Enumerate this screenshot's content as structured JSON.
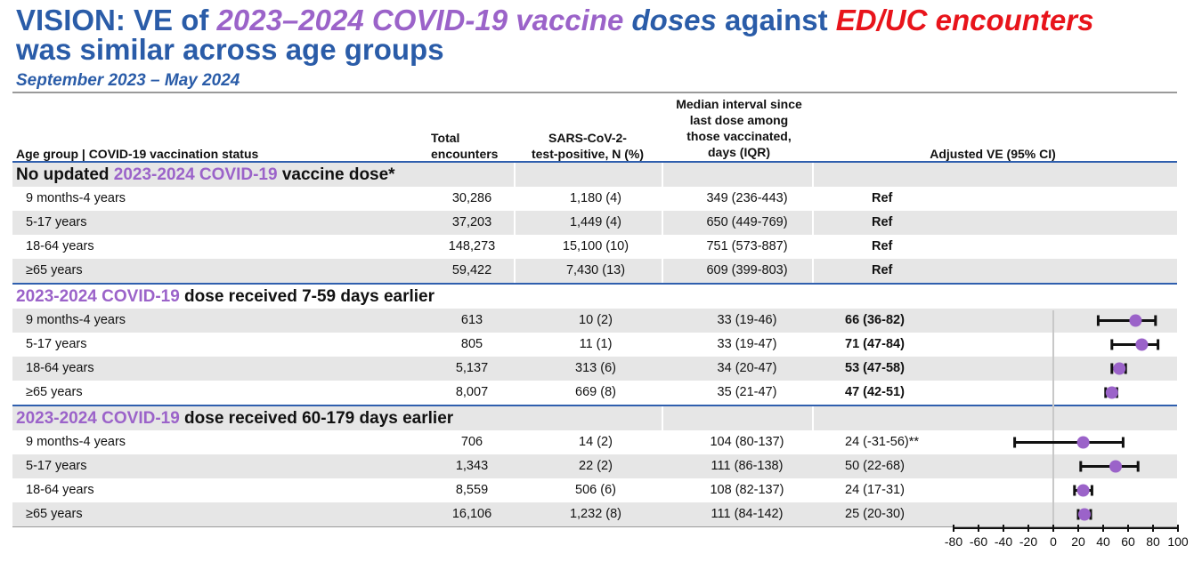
{
  "title": {
    "part1": "VISION: VE of ",
    "part2": "2023–2024 COVID-19 vaccine",
    "part3": " doses",
    "part4": " against ",
    "part5": "ED/UC encounters",
    "line2": "was similar across age groups"
  },
  "subtitle": "September 2023 – May 2024",
  "headers": {
    "age": "Age group | COVID-19 vaccination status",
    "total": [
      "Total",
      "encounters"
    ],
    "positive": [
      "SARS-CoV-2-",
      "test-positive, N (%)"
    ],
    "interval": [
      "Median interval since",
      "last dose among",
      "those vaccinated,",
      "days (IQR)"
    ],
    "ve": "Adjusted VE (95% CI)"
  },
  "sections": [
    {
      "title_pre": "No updated ",
      "title_vac": "2023-2024 COVID-19",
      "title_post": " vaccine dose*",
      "rows": [
        {
          "age": "9 months-4 years",
          "total": "30,286",
          "positive": "1,180 (4)",
          "interval": "349 (236-443)",
          "ve": "Ref"
        },
        {
          "age": "5-17 years",
          "total": "37,203",
          "positive": "1,449 (4)",
          "interval": "650 (449-769)",
          "ve": "Ref"
        },
        {
          "age": "18-64 years",
          "total": "148,273",
          "positive": "15,100 (10)",
          "interval": "751 (573-887)",
          "ve": "Ref"
        },
        {
          "age": "≥65 years",
          "total": "59,422",
          "positive": "7,430 (13)",
          "interval": "609 (399-803)",
          "ve": "Ref"
        }
      ]
    },
    {
      "title_pre": "",
      "title_vac": "2023-2024 COVID-19",
      "title_post": " dose received 7-59 days earlier",
      "rows": [
        {
          "age": "9 months-4 years",
          "total": "613",
          "positive": "10 (2)",
          "interval": "33 (19-46)",
          "ve": "66 (36-82)"
        },
        {
          "age": "5-17 years",
          "total": "805",
          "positive": "11 (1)",
          "interval": "33 (19-47)",
          "ve": "71 (47-84)"
        },
        {
          "age": "18-64 years",
          "total": "5,137",
          "positive": "313 (6)",
          "interval": "34 (20-47)",
          "ve": "53 (47-58)"
        },
        {
          "age": "≥65 years",
          "total": "8,007",
          "positive": "669 (8)",
          "interval": "35 (21-47)",
          "ve": "47 (42-51)"
        }
      ]
    },
    {
      "title_pre": "",
      "title_vac": "2023-2024 COVID-19",
      "title_post": " dose received 60-179 days earlier",
      "rows": [
        {
          "age": "9 months-4 years",
          "total": "706",
          "positive": "14 (2)",
          "interval": "104 (80-137)",
          "ve": "24 (-31-56)**"
        },
        {
          "age": "5-17 years",
          "total": "1,343",
          "positive": "22 (2)",
          "interval": "111 (86-138)",
          "ve": "50 (22-68)"
        },
        {
          "age": "18-64 years",
          "total": "8,559",
          "positive": "506 (6)",
          "interval": "108 (82-137)",
          "ve": "24 (17-31)"
        },
        {
          "age": "≥65 years",
          "total": "16,106",
          "positive": "1,232 (8)",
          "interval": "111 (84-142)",
          "ve": "25 (20-30)"
        }
      ]
    }
  ],
  "chart_data": {
    "type": "scatter",
    "xlim": [
      -80,
      100
    ],
    "xticks": [
      -80,
      -60,
      -40,
      -20,
      0,
      20,
      40,
      60,
      80,
      100
    ],
    "points": [
      {
        "section": 1,
        "row": 0,
        "ve": 66,
        "lo": 36,
        "hi": 82
      },
      {
        "section": 1,
        "row": 1,
        "ve": 71,
        "lo": 47,
        "hi": 84
      },
      {
        "section": 1,
        "row": 2,
        "ve": 53,
        "lo": 47,
        "hi": 58
      },
      {
        "section": 1,
        "row": 3,
        "ve": 47,
        "lo": 42,
        "hi": 51
      },
      {
        "section": 2,
        "row": 0,
        "ve": 24,
        "lo": -31,
        "hi": 56
      },
      {
        "section": 2,
        "row": 1,
        "ve": 50,
        "lo": 22,
        "hi": 68
      },
      {
        "section": 2,
        "row": 2,
        "ve": 24,
        "lo": 17,
        "hi": 31
      },
      {
        "section": 2,
        "row": 3,
        "ve": 25,
        "lo": 20,
        "hi": 30
      }
    ],
    "colors": {
      "point": "#9b63c9",
      "whisker": "#111111",
      "zero_line": "#c8c8c8",
      "title_blue": "#2a5ca8",
      "accent_red": "#e8141b"
    }
  }
}
